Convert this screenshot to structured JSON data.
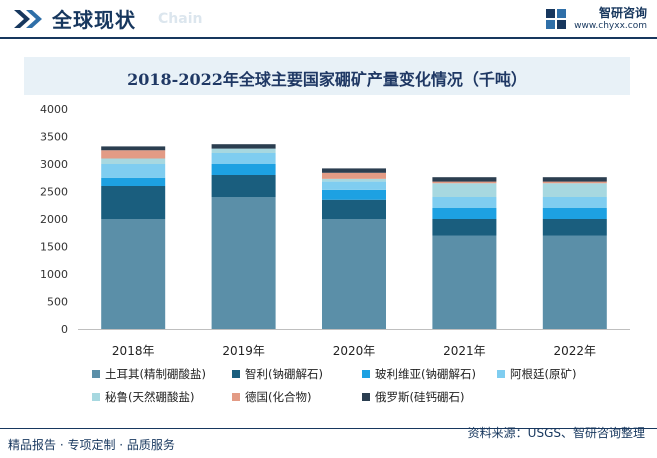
{
  "header": {
    "title": "全球现状",
    "subtitle_en": "Chain",
    "brand_name": "智研咨询",
    "brand_url": "www.chyxx.com"
  },
  "chart_data": {
    "type": "bar",
    "stacked": true,
    "title": "2018-2022年全球主要国家硼矿产量变化情况（千吨）",
    "categories": [
      "2018年",
      "2019年",
      "2020年",
      "2021年",
      "2022年"
    ],
    "ylim": [
      0,
      4000
    ],
    "yticks": [
      0,
      500,
      1000,
      1500,
      2000,
      2500,
      3000,
      3500,
      4000
    ],
    "grid": false,
    "legend_position": "bottom",
    "series": [
      {
        "name": "土耳其(精制硼酸盐)",
        "color": "#5b8fa8",
        "values": [
          2000,
          2400,
          2000,
          1700,
          1700
        ]
      },
      {
        "name": "智利(钠硼解石)",
        "color": "#1a5e7e",
        "values": [
          600,
          400,
          350,
          300,
          300
        ]
      },
      {
        "name": "玻利维亚(钠硼解石)",
        "color": "#1da1e2",
        "values": [
          150,
          200,
          180,
          200,
          200
        ]
      },
      {
        "name": "阿根廷(原矿)",
        "color": "#7fcdf0",
        "values": [
          250,
          200,
          150,
          200,
          200
        ]
      },
      {
        "name": "秘鲁(天然硼酸盐)",
        "color": "#a7d8e0",
        "values": [
          100,
          80,
          50,
          250,
          250
        ]
      },
      {
        "name": "德国(化合物)",
        "color": "#e39b85",
        "values": [
          150,
          0,
          110,
          30,
          30
        ]
      },
      {
        "name": "俄罗斯(硅钙硼石)",
        "color": "#2b3e50",
        "values": [
          70,
          80,
          80,
          80,
          80
        ]
      }
    ]
  },
  "footer": {
    "left_text": "精品报告 · 专项定制 · 品质服务",
    "source": "资料来源：USGS、智研咨询整理"
  }
}
